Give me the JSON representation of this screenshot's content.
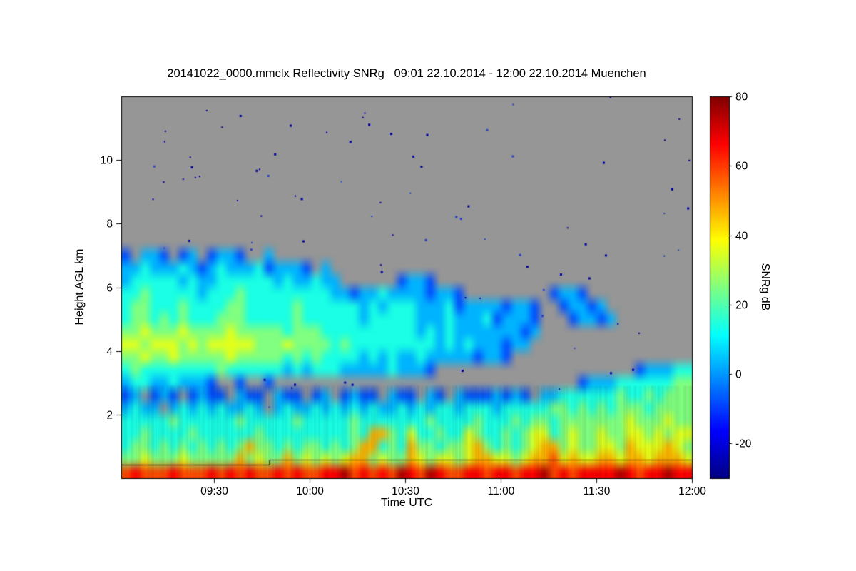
{
  "chart_data": {
    "type": "heatmap",
    "title": "20141022_0000.mmclx Reflectivity SNRg   09:01 22.10.2014 - 12:00 22.10.2014 Muenchen",
    "xlabel": "Time UTC",
    "ylabel": "Height AGL km",
    "x_range": [
      "09:01",
      "12:00"
    ],
    "x_ticks": [
      "09:30",
      "10:00",
      "10:30",
      "11:00",
      "11:30",
      "12:00"
    ],
    "y_range": [
      0,
      12
    ],
    "y_ticks": [
      2,
      4,
      6,
      8,
      10
    ],
    "grid_on": false,
    "colorbar": {
      "label": "SNRg dB",
      "min": -30,
      "max": 80,
      "ticks": [
        80,
        60,
        40,
        20,
        0,
        -20
      ],
      "colormap": "jet"
    },
    "no_data_color": "#969696",
    "char_db": {
      "0": -25,
      "1": -15,
      "2": -8,
      "3": 3,
      "4": 14,
      "5": 25,
      "6": 36,
      "7": 47,
      "8": 58,
      "9": 66,
      "A": 75
    },
    "grid_rows_top_to_bottom": [
      "",
      "",
      "",
      "",
      "",
      "",
      "",
      "",
      "",
      "",
      "",
      "",
      [
        "2.332.23.2",
        "332..3...."
      ],
      [
        "3343334323",
        "4333423332",
        ".3"
      ],
      [
        "3444443433",
        "4444443433",
        "433......2",
        "332"
      ],
      [
        "4454444434",
        "4454444444",
        "4433233433",
        "332332....",
        ".....2332."
      ],
      [
        "4554445444",
        "4554444454",
        "4444434344",
        "4333423333",
        "2332..2332",
        "3"
      ],
      [
        "4554545444",
        "5554444454",
        "4444434444",
        "4333433342",
        "3332...233",
        "23"
      ],
      [
        "5565556555",
        "5655555455",
        "5444444444",
        "4343433333",
        "3323"
      ],
      [
        "6656665656",
        "6666555655",
        "5545444444",
        "4443434333",
        "233"
      ],
      [
        "5565565555",
        "5655555454",
        "5444434343",
        "3433333233",
        "2"
      ],
      [
        "4544444444",
        "5444444343",
        "4443333343",
        "332.......",
        "..........",
        "....233344"
      ],
      [
        "3443343332",
        "..2..2....",
        "..........",
        "..........",
        "........23",
        "3344444455"
      ],
      [
        "23.232.232",
        "2.322.322.",
        "23.2322.32",
        "2.32.32223",
        "232.334444",
        "4454454555"
      ],
      [
        "3433.34343",
        "43343.3433",
        "4343434334",
        "3434434443",
        "4444455454",
        "5455545555"
      ],
      [
        "4444454444",
        "4454444454",
        "4444544444",
        "4454444544",
        "4545545555",
        "5556555655"
      ],
      [
        "4454444544",
        "4444544444",
        "4444547754",
        "6445446544",
        "5456645655",
        "6556656566"
      ],
      [
        "4554545454",
        "5457554545",
        "5454577454",
        "7554556754",
        "5456775655",
        "6657666765"
      ],
      [
        "5565556555",
        "5575655756",
        "5656775655",
        "7656656776",
        "6567786766",
        "7767767776"
      ],
      [
        "8988898889",
        "8989889898",
        "899A89898A",
        "98A9889989",
        "9899A89899",
        "99A9899A99"
      ]
    ],
    "surface_line_km": [
      {
        "t0": 0,
        "t1": 0.26,
        "h": 0.42
      },
      {
        "t0": 0.26,
        "t1": 1,
        "h": 0.58
      }
    ]
  }
}
